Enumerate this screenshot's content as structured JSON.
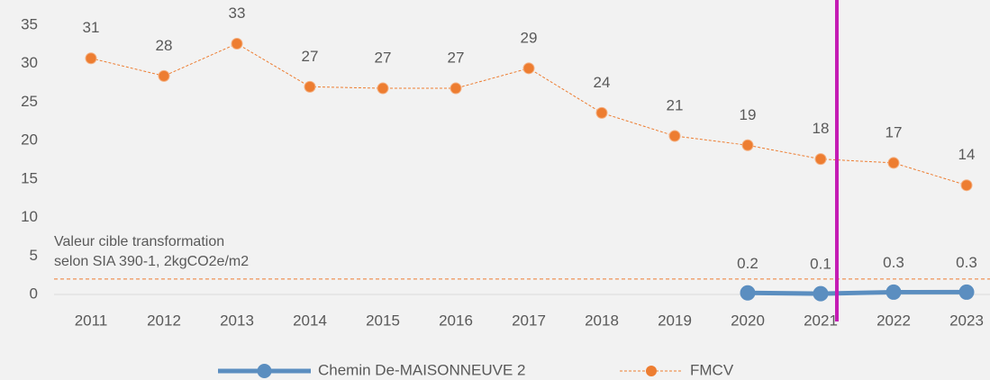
{
  "chart_data": {
    "type": "line",
    "categories": [
      "2011",
      "2012",
      "2013",
      "2014",
      "2015",
      "2016",
      "2017",
      "2018",
      "2019",
      "2020",
      "2021",
      "2022",
      "2023"
    ],
    "series": [
      {
        "name": "Chemin De-MAISONNEUVE 2",
        "color": "#5b8ec0",
        "style": "solid",
        "values": [
          null,
          null,
          null,
          null,
          null,
          null,
          null,
          null,
          null,
          0.2,
          0.1,
          0.3,
          0.3
        ]
      },
      {
        "name": "FMCV",
        "color": "#ed7d31",
        "style": "dashed",
        "values": [
          30.7,
          28.4,
          32.6,
          27,
          26.8,
          26.8,
          29.4,
          23.6,
          20.6,
          19.4,
          17.6,
          17.1,
          14.2
        ],
        "value_labels": [
          "31",
          "28",
          "33",
          "27",
          "27",
          "27",
          "29",
          "24",
          "21",
          "19",
          "18",
          "17",
          "14"
        ]
      }
    ],
    "ylim": [
      0,
      35
    ],
    "yticks": [
      0,
      5,
      10,
      15,
      20,
      25,
      30,
      35
    ],
    "reference_line": {
      "value": 2,
      "color": "#ed7d31",
      "label": [
        "Valeur cible transformation",
        "selon SIA 390-1, 2kgCO2e/m2"
      ],
      "label_color": "#c00000"
    },
    "legend": "bottom"
  }
}
